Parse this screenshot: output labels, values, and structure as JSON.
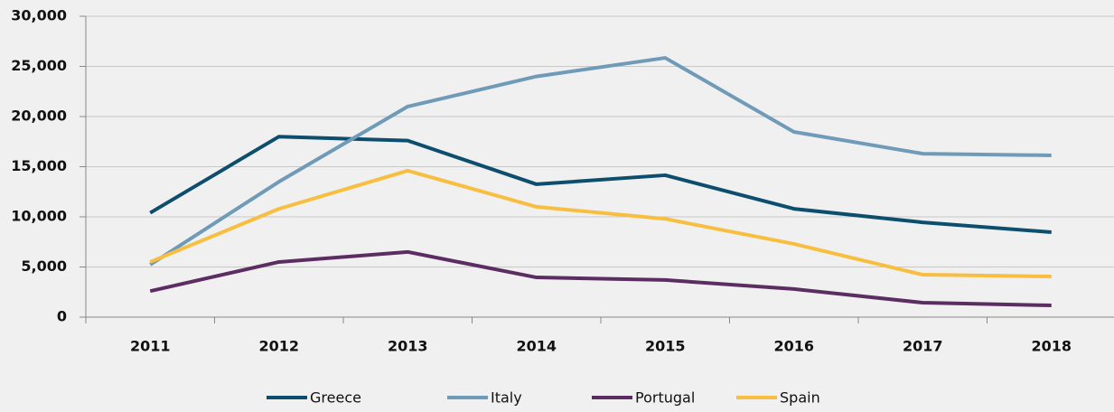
{
  "chart_data": {
    "type": "line",
    "categories": [
      "2011",
      "2012",
      "2013",
      "2014",
      "2015",
      "2016",
      "2017",
      "2018"
    ],
    "series": [
      {
        "name": "Greece",
        "color": "#0d4e6e",
        "values": [
          10400,
          18000,
          17600,
          13250,
          14150,
          10800,
          9450,
          8470
        ]
      },
      {
        "name": "Italy",
        "color": "#6f9bb8",
        "values": [
          5230,
          13500,
          21000,
          24000,
          25850,
          18470,
          16300,
          16130
        ]
      },
      {
        "name": "Portugal",
        "color": "#5c2d62",
        "values": [
          2600,
          5500,
          6500,
          3960,
          3700,
          2800,
          1440,
          1170
        ]
      },
      {
        "name": "Spain",
        "color": "#f8be40",
        "values": [
          5500,
          10800,
          14600,
          11000,
          9800,
          7300,
          4230,
          4050
        ]
      }
    ],
    "ylim": [
      0,
      30000
    ],
    "yticks": [
      0,
      {
        "value": 5000,
        "label": "5,000"
      },
      {
        "value": 10000,
        "label": "10,000"
      },
      {
        "value": 15000,
        "label": "15,000"
      },
      {
        "value": 20000,
        "label": "20,000"
      },
      {
        "value": 25000,
        "label": "25,000"
      },
      {
        "value": 30000,
        "label": "30,000"
      }
    ],
    "grid": true,
    "legend": "bottom"
  }
}
